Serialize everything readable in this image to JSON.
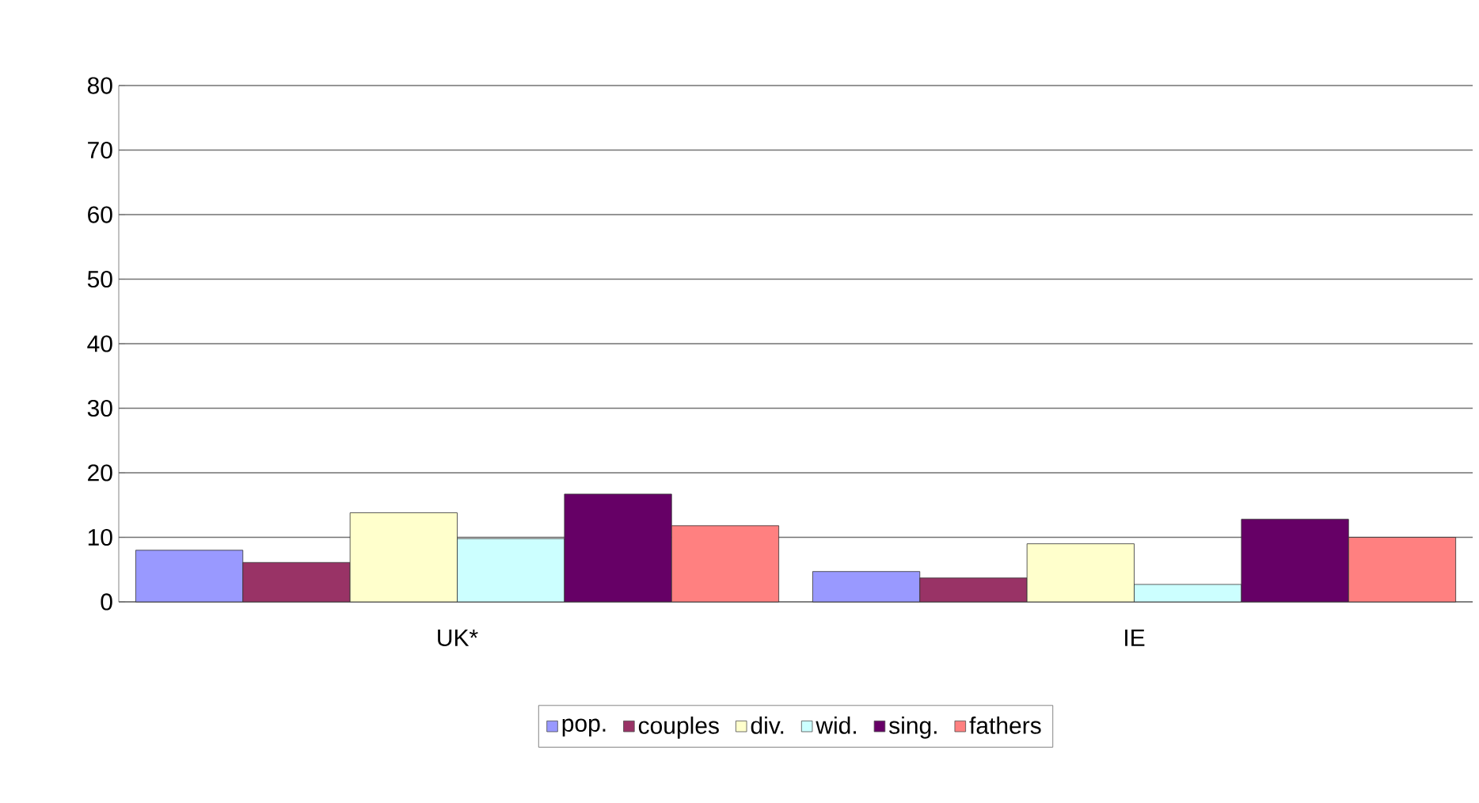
{
  "chart_data": {
    "type": "bar",
    "categories": [
      "UK*",
      "IE"
    ],
    "series": [
      {
        "name": "pop.",
        "color": "#9999ff",
        "values": [
          8.0,
          4.7
        ]
      },
      {
        "name": "couples",
        "color": "#993366",
        "values": [
          6.1,
          3.7
        ]
      },
      {
        "name": "div.",
        "color": "#ffffcc",
        "values": [
          13.8,
          9.0
        ]
      },
      {
        "name": "wid.",
        "color": "#ccffff",
        "values": [
          9.8,
          2.7
        ]
      },
      {
        "name": "sing.",
        "color": "#660066",
        "values": [
          16.7,
          12.8
        ]
      },
      {
        "name": "fathers",
        "color": "#ff8080",
        "values": [
          11.8,
          10.0
        ]
      }
    ],
    "ylim": [
      0,
      80
    ],
    "yticks": [
      0,
      10,
      20,
      30,
      40,
      50,
      60,
      70,
      80
    ],
    "grid": "y",
    "legend": "bottom"
  }
}
